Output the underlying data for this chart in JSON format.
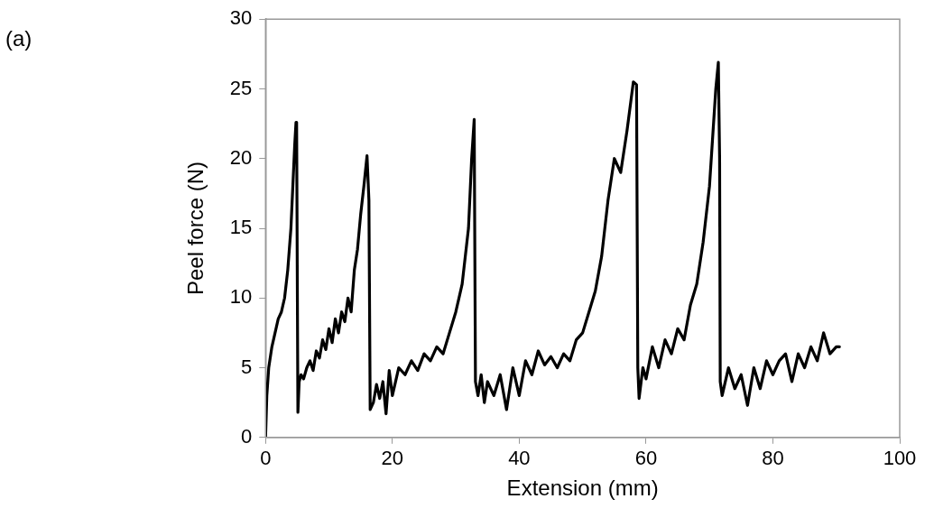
{
  "chart_data": {
    "type": "line",
    "xlabel": "Extension (mm)",
    "ylabel": "Peel force (N)",
    "annotations": [
      "(a)"
    ],
    "xlim": [
      0,
      100
    ],
    "xticks": [
      0,
      20,
      40,
      60,
      80,
      100
    ],
    "ylim": [
      0,
      30
    ],
    "yticks": [
      0,
      5,
      10,
      15,
      20,
      25,
      30
    ],
    "grid": false,
    "legend": false,
    "marker": "none",
    "line_style": "solid",
    "x": [
      0,
      0.2,
      0.5,
      1,
      1.5,
      2,
      2.5,
      3,
      3.5,
      4,
      4.3,
      4.6,
      4.8,
      4.9,
      5.0,
      5.1,
      5.3,
      5.6,
      6,
      6.5,
      7,
      7.5,
      8,
      8.5,
      9,
      9.5,
      10,
      10.5,
      11,
      11.5,
      12,
      12.5,
      13,
      13.5,
      14,
      14.5,
      15,
      15.5,
      16,
      16.3,
      16.5,
      17,
      17.5,
      18,
      18.5,
      19,
      19.5,
      20,
      21,
      22,
      23,
      24,
      25,
      26,
      27,
      28,
      29,
      30,
      31,
      32,
      32.5,
      32.9,
      33.1,
      33.5,
      34,
      34.5,
      35,
      36,
      37,
      38,
      39,
      40,
      41,
      42,
      43,
      44,
      45,
      46,
      47,
      48,
      49,
      50,
      51,
      52,
      53,
      54,
      55,
      56,
      57,
      58,
      58.5,
      58.7,
      58.9,
      59.5,
      60,
      61,
      62,
      63,
      64,
      65,
      66,
      67,
      68,
      69,
      70,
      71,
      71.4,
      71.6,
      71.7,
      72,
      73,
      74,
      75,
      76,
      77,
      78,
      79,
      80,
      81,
      82,
      83,
      84,
      85,
      86,
      87,
      88,
      89,
      90,
      90.5
    ],
    "series": [
      {
        "color": "#000000",
        "values": [
          0,
          3,
          5,
          6.5,
          7.5,
          8.5,
          9,
          10,
          12,
          15,
          18,
          21,
          22.6,
          22.5,
          12,
          1.8,
          4,
          4.5,
          4.2,
          5,
          5.5,
          4.8,
          6.2,
          5.7,
          7,
          6.3,
          7.8,
          6.8,
          8.5,
          7.5,
          9,
          8.3,
          10,
          9,
          12,
          13.5,
          16,
          18,
          20.2,
          17,
          2,
          2.5,
          3.8,
          2.8,
          4,
          1.7,
          4.8,
          3,
          5,
          4.5,
          5.5,
          4.8,
          6,
          5.5,
          6.5,
          6,
          7.5,
          9,
          11,
          15,
          20,
          22.8,
          4,
          3,
          4.5,
          2.5,
          4,
          3,
          4.5,
          2,
          5,
          3,
          5.5,
          4.5,
          6.2,
          5.2,
          5.8,
          5,
          6,
          5.5,
          7,
          7.5,
          9,
          10.5,
          13,
          17,
          20,
          19,
          22,
          25.5,
          25.3,
          5,
          2.8,
          5,
          4.2,
          6.5,
          5,
          7,
          6,
          7.8,
          7,
          9.5,
          11,
          14,
          18,
          25,
          26.9,
          20,
          4,
          3,
          5,
          3.5,
          4.5,
          2.3,
          5,
          3.5,
          5.5,
          4.5,
          5.5,
          6,
          4,
          6,
          5,
          6.5,
          5.5,
          7.5,
          6,
          6.5,
          6.5
        ]
      }
    ]
  }
}
